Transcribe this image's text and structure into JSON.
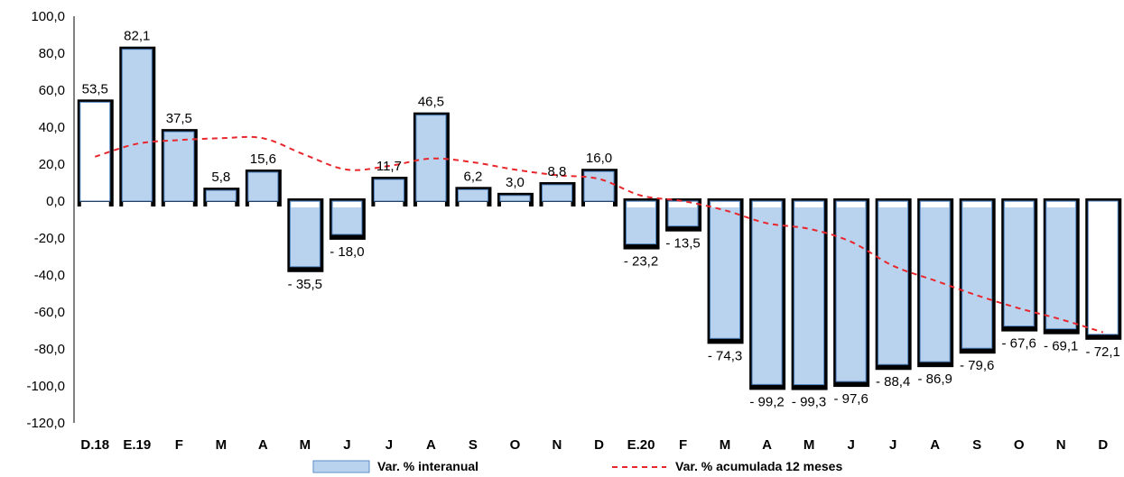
{
  "chart_data": {
    "type": "bar",
    "categories": [
      "D.18",
      "E.19",
      "F",
      "M",
      "A",
      "M",
      "J",
      "J",
      "A",
      "S",
      "O",
      "N",
      "D",
      "E.20",
      "F",
      "M",
      "A",
      "M",
      "J",
      "J",
      "A",
      "S",
      "O",
      "N",
      "D"
    ],
    "y_ticks": [
      "100,0",
      "80,0",
      "60,0",
      "40,0",
      "20,0",
      "0,0",
      "-20,0",
      "-40,0",
      "-60,0",
      "-80,0",
      "-100,0",
      "-120,0"
    ],
    "ylim": [
      -120,
      100
    ],
    "series": [
      {
        "name": "Var. % interanual",
        "kind": "bar",
        "color": "#b9d3ee",
        "values": [
          53.5,
          82.1,
          37.5,
          5.8,
          15.6,
          -35.5,
          -18.0,
          11.7,
          46.5,
          6.2,
          3.0,
          8.8,
          16.0,
          -23.2,
          -13.5,
          -74.3,
          -99.2,
          -99.3,
          -97.6,
          -88.4,
          -86.9,
          -79.6,
          -67.6,
          -69.1,
          -72.1
        ],
        "labels": [
          "53,5",
          "82,1",
          "37,5",
          "5,8",
          "15,6",
          "- 35,5",
          "- 18,0",
          "11,7",
          "46,5",
          "6,2",
          "3,0",
          "8,8",
          "16,0",
          "- 23,2",
          "- 13,5",
          "- 74,3",
          "- 99,2",
          "- 99,3",
          "- 97,6",
          "- 88,4",
          "- 86,9",
          "- 79,6",
          "- 67,6",
          "- 69,1",
          "- 72,1"
        ]
      },
      {
        "name": "Var. % acumulada 12 meses",
        "kind": "line",
        "color": "#e8262b",
        "values": [
          24,
          31,
          33,
          34,
          34,
          25,
          17,
          19,
          23,
          21,
          17,
          14,
          12,
          3,
          0,
          -5,
          -12,
          -15,
          -22,
          -35,
          -43,
          -51,
          -58,
          -64,
          -71
        ]
      }
    ],
    "grid": false,
    "legend_position": "bottom"
  }
}
